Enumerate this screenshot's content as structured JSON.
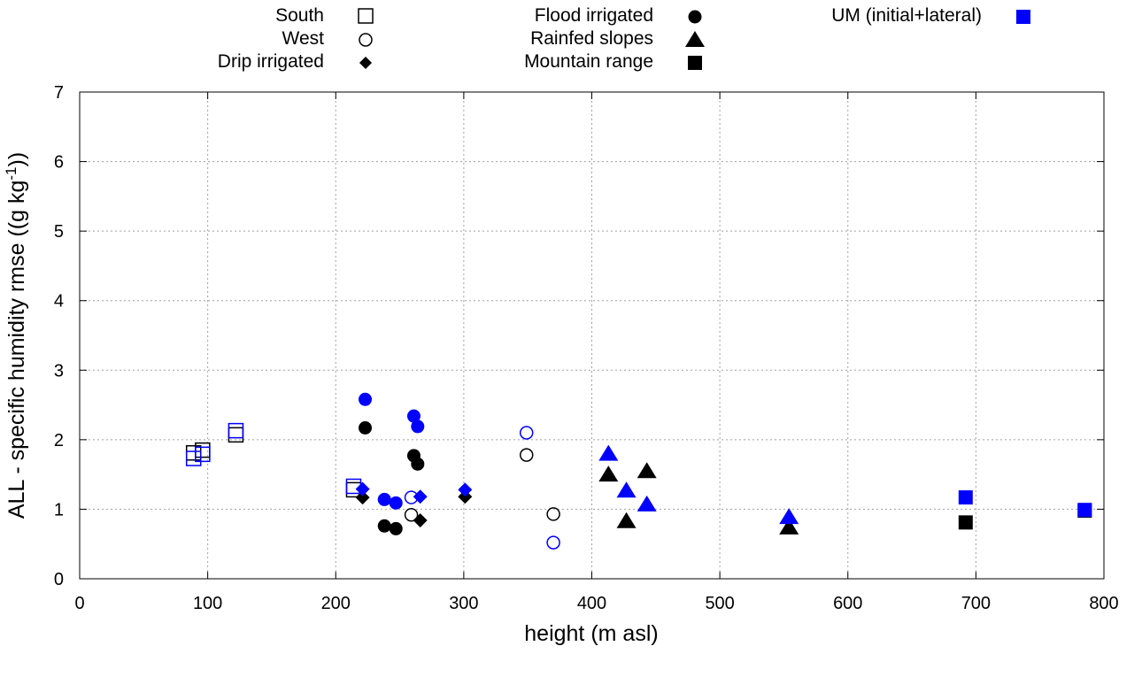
{
  "chart_data": {
    "type": "scatter",
    "xlabel": "height (m asl)",
    "ylabel": {
      "main": "ALL - specific humidity rmse ((g kg",
      "sup": "-1",
      "end": "))"
    },
    "xlim": [
      0,
      800
    ],
    "ylim": [
      0,
      7
    ],
    "xticks": [
      "0",
      "100",
      "200",
      "300",
      "400",
      "500",
      "600",
      "700",
      "800"
    ],
    "yticks": [
      "0",
      "1",
      "2",
      "3",
      "4",
      "5",
      "6",
      "7"
    ],
    "grid": true,
    "legend_placement": "top-outside",
    "colors": {
      "reference": "#000000",
      "um": "#0000ff",
      "grid": "#a0a0a0"
    },
    "legend": [
      {
        "label": "South",
        "marker": "open-square",
        "color": "#000000"
      },
      {
        "label": "West",
        "marker": "open-circle",
        "color": "#000000"
      },
      {
        "label": "Drip irrigated",
        "marker": "diamond",
        "color": "#000000"
      },
      {
        "label": "Flood irrigated",
        "marker": "filled-circle",
        "color": "#000000"
      },
      {
        "label": "Rainfed slopes",
        "marker": "triangle",
        "color": "#000000"
      },
      {
        "label": "Mountain range",
        "marker": "filled-square",
        "color": "#000000"
      },
      {
        "label": "UM (initial+lateral)",
        "marker": "filled-square",
        "color": "#0000ff"
      }
    ],
    "series": [
      {
        "name": "South",
        "marker": "open-square",
        "reference": [
          [
            89,
            1.81
          ],
          [
            96,
            1.85
          ],
          [
            122,
            2.07
          ],
          [
            214,
            1.28
          ]
        ],
        "um": [
          [
            89,
            1.73
          ],
          [
            96,
            1.79
          ],
          [
            122,
            2.13
          ],
          [
            214,
            1.33
          ]
        ]
      },
      {
        "name": "West",
        "marker": "open-circle",
        "reference": [
          [
            259,
            0.92
          ],
          [
            349,
            1.78
          ],
          [
            370,
            0.93
          ]
        ],
        "um": [
          [
            259,
            1.17
          ],
          [
            349,
            2.1
          ],
          [
            370,
            0.52
          ]
        ]
      },
      {
        "name": "Drip irrigated",
        "marker": "diamond",
        "reference": [
          [
            221,
            1.17
          ],
          [
            266,
            0.84
          ],
          [
            301,
            1.18
          ]
        ],
        "um": [
          [
            221,
            1.29
          ],
          [
            266,
            1.18
          ],
          [
            301,
            1.28
          ]
        ]
      },
      {
        "name": "Flood irrigated",
        "marker": "filled-circle",
        "reference": [
          [
            223,
            2.17
          ],
          [
            238,
            0.76
          ],
          [
            247,
            0.72
          ],
          [
            261,
            1.77
          ],
          [
            264,
            1.65
          ]
        ],
        "um": [
          [
            223,
            2.58
          ],
          [
            238,
            1.14
          ],
          [
            247,
            1.09
          ],
          [
            261,
            2.34
          ],
          [
            264,
            2.19
          ]
        ]
      },
      {
        "name": "Rainfed slopes",
        "marker": "triangle",
        "reference": [
          [
            413,
            1.5
          ],
          [
            427,
            0.83
          ],
          [
            443,
            1.55
          ],
          [
            554,
            0.74
          ]
        ],
        "um": [
          [
            413,
            1.8
          ],
          [
            427,
            1.27
          ],
          [
            443,
            1.07
          ],
          [
            554,
            0.89
          ]
        ]
      },
      {
        "name": "Mountain range",
        "marker": "filled-square",
        "reference": [
          [
            692,
            0.81
          ],
          [
            785,
            0.98
          ]
        ],
        "um": [
          [
            692,
            1.17
          ],
          [
            785,
            0.99
          ]
        ]
      }
    ]
  }
}
